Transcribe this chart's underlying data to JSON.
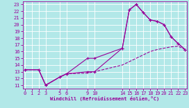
{
  "xlabel": "Windchill (Refroidissement éolien,°C)",
  "bg_color": "#b2e8e8",
  "line_color": "#990099",
  "grid_color": "#ffffff",
  "xticks": [
    0,
    1,
    2,
    3,
    5,
    6,
    9,
    10,
    14,
    15,
    16,
    17,
    18,
    19,
    20,
    21,
    22,
    23
  ],
  "yticks": [
    11,
    12,
    13,
    14,
    15,
    16,
    17,
    18,
    19,
    20,
    21,
    22,
    23
  ],
  "xlim": [
    -0.3,
    23.3
  ],
  "ylim": [
    10.5,
    23.5
  ],
  "line1_x": [
    0,
    2,
    3,
    5,
    6,
    9,
    10,
    14,
    15,
    16,
    17,
    18,
    19,
    20,
    21,
    22,
    23
  ],
  "line1_y": [
    13.3,
    13.3,
    11.0,
    12.2,
    12.7,
    15.0,
    15.0,
    16.5,
    22.2,
    23.0,
    21.8,
    20.7,
    20.5,
    20.0,
    18.2,
    17.2,
    16.3
  ],
  "line2_x": [
    0,
    2,
    3,
    5,
    6,
    9,
    10,
    14,
    15,
    16,
    17,
    18,
    19,
    20,
    21,
    22,
    23
  ],
  "line2_y": [
    13.3,
    13.3,
    11.0,
    12.2,
    12.7,
    13.0,
    13.0,
    16.5,
    22.2,
    23.0,
    21.8,
    20.7,
    20.5,
    20.0,
    18.2,
    17.2,
    16.3
  ],
  "line3_x": [
    0,
    2,
    3,
    5,
    6,
    9,
    10,
    14,
    15,
    16,
    17,
    18,
    19,
    20,
    21,
    22,
    23
  ],
  "line3_y": [
    13.3,
    13.3,
    11.0,
    12.2,
    12.7,
    12.8,
    13.0,
    14.0,
    14.5,
    15.0,
    15.5,
    16.0,
    16.3,
    16.5,
    16.7,
    16.8,
    16.3
  ]
}
